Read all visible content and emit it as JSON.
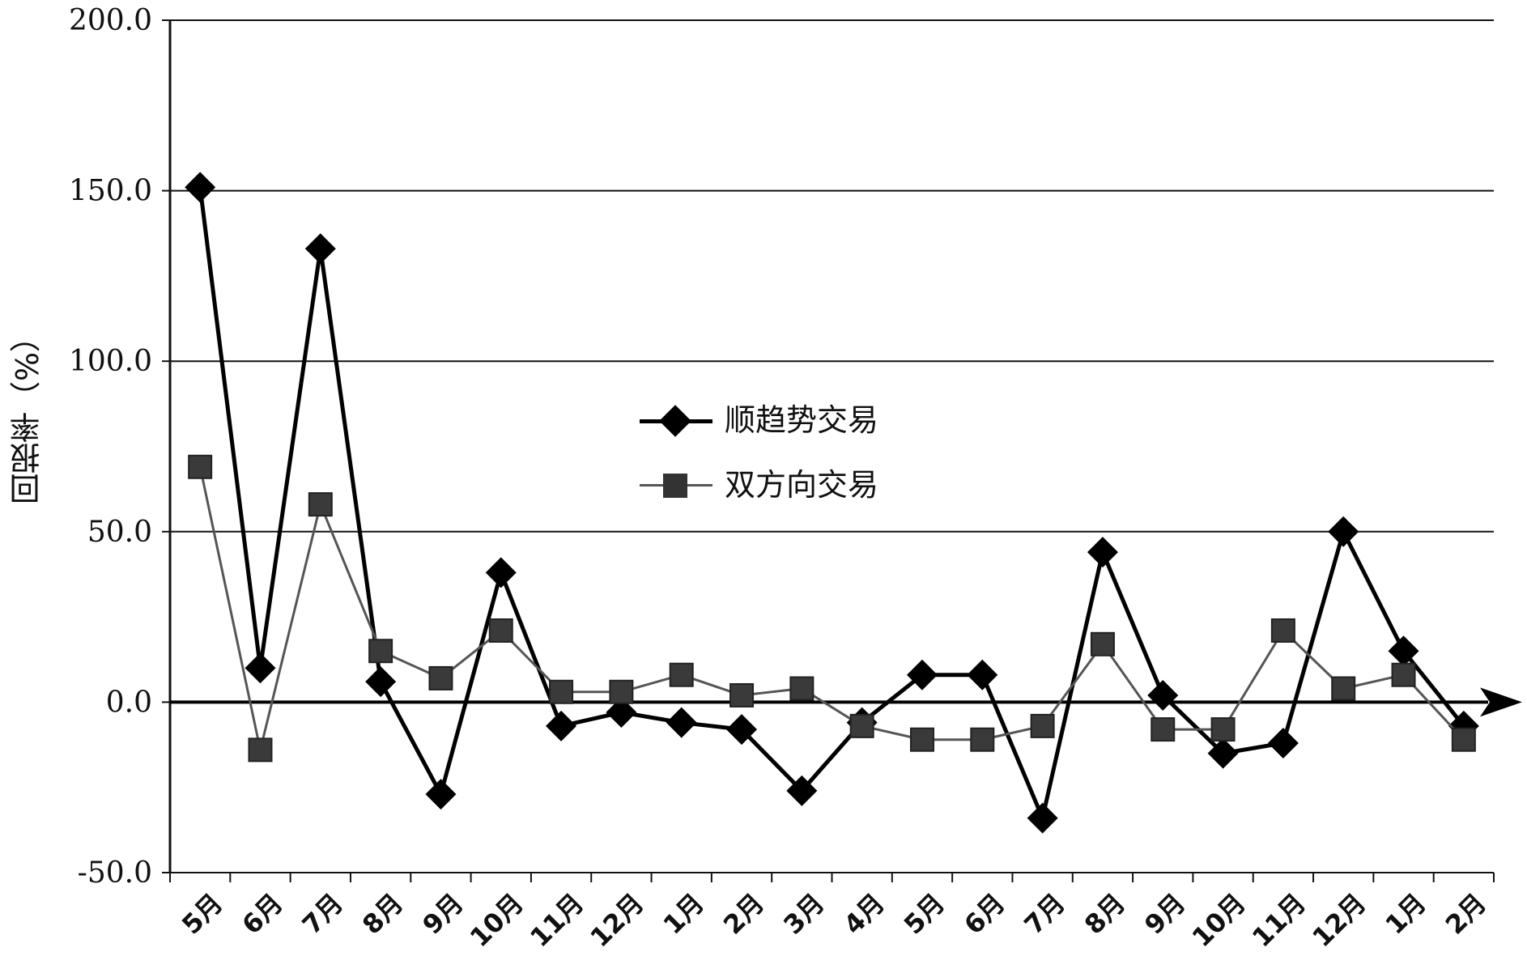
{
  "chart_data": {
    "type": "line",
    "title": "",
    "xlabel": "",
    "ylabel": "回报率（%）",
    "ylim": [
      -50,
      200
    ],
    "yticks": [
      -50,
      0,
      50,
      100,
      150,
      200
    ],
    "ytick_labels": [
      "-50.0",
      "0.0",
      "50.0",
      "100.0",
      "150.0",
      "200.0"
    ],
    "grid": "horizontal",
    "legend_position": "center",
    "categories": [
      "5月",
      "6月",
      "7月",
      "8月",
      "9月",
      "10月",
      "11月",
      "12月",
      "1月",
      "2月",
      "3月",
      "4月",
      "5月",
      "6月",
      "7月",
      "8月",
      "9月",
      "10月",
      "11月",
      "12月",
      "1月",
      "2月"
    ],
    "series": [
      {
        "name": "顺趋势交易",
        "marker": "diamond",
        "color": "#000000",
        "values": [
          151,
          10,
          133,
          6,
          -27,
          38,
          -7,
          -3,
          -6,
          -8,
          -26,
          -6,
          8,
          8,
          -34,
          44,
          2,
          -15,
          -12,
          50,
          15,
          -7
        ]
      },
      {
        "name": "双方向交易",
        "marker": "square",
        "color": "#444444",
        "values": [
          69,
          -14,
          58,
          15,
          7,
          21,
          3,
          3,
          8,
          2,
          4,
          -7,
          -11,
          -11,
          -7,
          17,
          -8,
          -8,
          21,
          4,
          8,
          -11
        ]
      }
    ]
  }
}
